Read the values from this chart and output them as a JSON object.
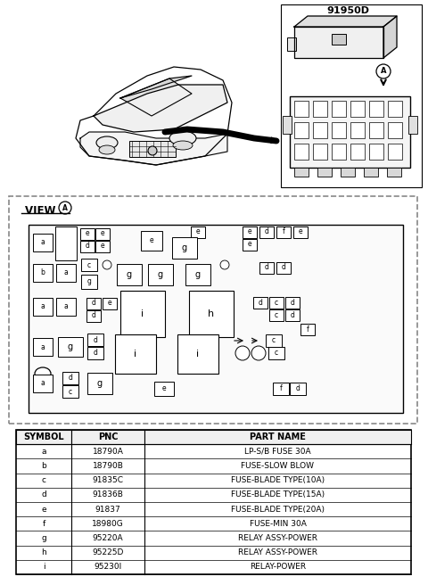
{
  "part_number": "91950D",
  "view_label": "VIEW A",
  "table_headers": [
    "SYMBOL",
    "PNC",
    "PART NAME"
  ],
  "table_rows": [
    [
      "a",
      "18790A",
      "LP-S/B FUSE 30A"
    ],
    [
      "b",
      "18790B",
      "FUSE-SLOW BLOW"
    ],
    [
      "c",
      "91835C",
      "FUSE-BLADE TYPE(10A)"
    ],
    [
      "d",
      "91836B",
      "FUSE-BLADE TYPE(15A)"
    ],
    [
      "e",
      "91837",
      "FUSE-BLADE TYPE(20A)"
    ],
    [
      "f",
      "18980G",
      "FUSE-MIN 30A"
    ],
    [
      "g",
      "95220A",
      "RELAY ASSY-POWER"
    ],
    [
      "h",
      "95225D",
      "RELAY ASSY-POWER"
    ],
    [
      "i",
      "95230I",
      "RELAY-POWER"
    ]
  ],
  "bg_color": "#ffffff",
  "text_color": "#000000"
}
